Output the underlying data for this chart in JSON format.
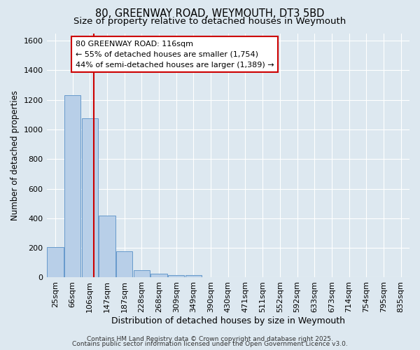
{
  "title": "80, GREENWAY ROAD, WEYMOUTH, DT3 5BD",
  "subtitle": "Size of property relative to detached houses in Weymouth",
  "xlabel": "Distribution of detached houses by size in Weymouth",
  "ylabel": "Number of detached properties",
  "bins": [
    "25sqm",
    "66sqm",
    "106sqm",
    "147sqm",
    "187sqm",
    "228sqm",
    "268sqm",
    "309sqm",
    "349sqm",
    "390sqm",
    "430sqm",
    "471sqm",
    "511sqm",
    "552sqm",
    "592sqm",
    "633sqm",
    "673sqm",
    "714sqm",
    "754sqm",
    "795sqm",
    "835sqm"
  ],
  "values": [
    205,
    1230,
    1075,
    420,
    175,
    48,
    28,
    15,
    15,
    0,
    0,
    0,
    0,
    0,
    0,
    0,
    0,
    0,
    0,
    0,
    0
  ],
  "bar_color": "#b8cfe8",
  "bar_edge_color": "#6699cc",
  "red_line_x": 2.244,
  "red_line_color": "#cc0000",
  "annotation_line1": "80 GREENWAY ROAD: 116sqm",
  "annotation_line2": "← 55% of detached houses are smaller (1,754)",
  "annotation_line3": "44% of semi-detached houses are larger (1,389) →",
  "annotation_box_color": "#ffffff",
  "annotation_box_edge_color": "#cc0000",
  "ylim": [
    0,
    1650
  ],
  "yticks": [
    0,
    200,
    400,
    600,
    800,
    1000,
    1200,
    1400,
    1600
  ],
  "background_color": "#dde8f0",
  "grid_color": "#ffffff",
  "footer_line1": "Contains HM Land Registry data © Crown copyright and database right 2025.",
  "footer_line2": "Contains public sector information licensed under the Open Government Licence v3.0.",
  "title_fontsize": 10.5,
  "subtitle_fontsize": 9.5,
  "xlabel_fontsize": 9,
  "ylabel_fontsize": 8.5,
  "tick_fontsize": 8,
  "annotation_fontsize": 8,
  "footer_fontsize": 6.5
}
